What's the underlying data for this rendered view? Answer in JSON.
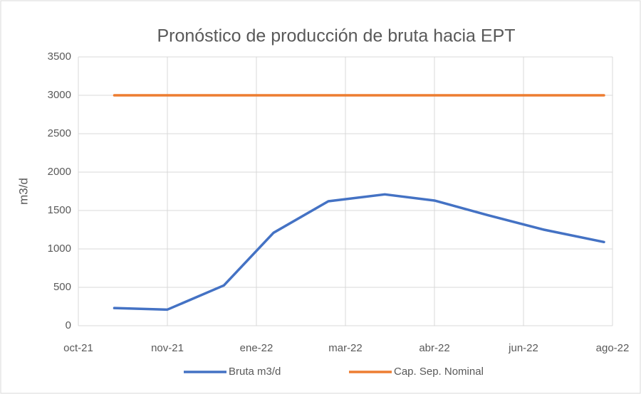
{
  "chart_data": {
    "type": "line",
    "title": "Pronóstico de producción de bruta hacia EPT",
    "y_label": "m3/d",
    "x": [
      44491,
      44522,
      44555,
      44584,
      44616,
      44649,
      44678,
      44709,
      44742,
      44777
    ],
    "series": [
      {
        "name": "Bruta m3/d",
        "color": "#4472c4",
        "values": [
          230,
          210,
          525,
          1210,
          1620,
          1710,
          1630,
          1440,
          1250,
          1090
        ]
      },
      {
        "name": "Cap. Sep. Nominal",
        "color": "#ed7d31",
        "values": [
          3000,
          3000,
          3000,
          3000,
          3000,
          3000,
          3000,
          3000,
          3000,
          3000
        ]
      }
    ],
    "xlim": [
      44470,
      44782
    ],
    "xticks": [
      {
        "value": 44470,
        "label": "oct-21"
      },
      {
        "value": 44522,
        "label": "nov-21"
      },
      {
        "value": 44574,
        "label": "ene-22"
      },
      {
        "value": 44626,
        "label": "mar-22"
      },
      {
        "value": 44678,
        "label": "abr-22"
      },
      {
        "value": 44730,
        "label": "jun-22"
      },
      {
        "value": 44782,
        "label": "ago-22"
      }
    ],
    "ylim": [
      0,
      3500
    ],
    "yticks": [
      0,
      500,
      1000,
      1500,
      2000,
      2500,
      3000,
      3500
    ],
    "grid": true,
    "legend": "bottom"
  }
}
